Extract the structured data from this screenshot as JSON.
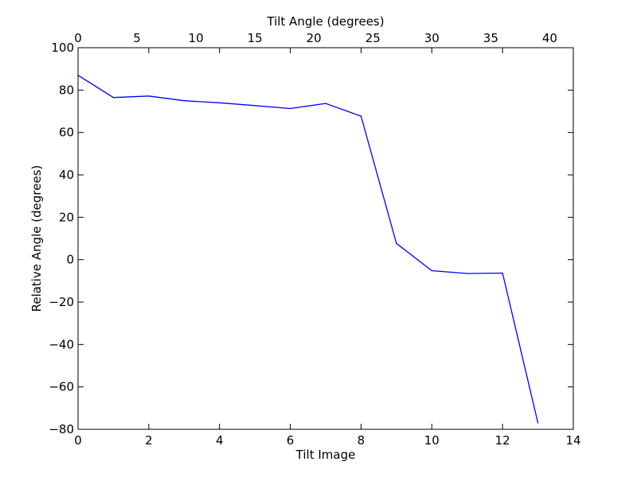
{
  "chart_data": {
    "type": "line",
    "title": "",
    "xlabel": "Tilt Image",
    "ylabel": "Relative Angle (degrees)",
    "x2label": "Tilt Angle (degrees)",
    "xlim": [
      0,
      14
    ],
    "ylim": [
      -80,
      100
    ],
    "x2lim": [
      0,
      42
    ],
    "x_ticks": [
      "0",
      "2",
      "4",
      "6",
      "8",
      "10",
      "12",
      "14"
    ],
    "y_ticks": [
      "100",
      "80",
      "60",
      "40",
      "20",
      "0",
      "−20",
      "−40",
      "−60",
      "−80"
    ],
    "x2_ticks": [
      "0",
      "5",
      "10",
      "15",
      "20",
      "25",
      "30",
      "35",
      "40"
    ],
    "grid": false,
    "legend": "none",
    "line_color": "#0000ff",
    "series": [
      {
        "x": [
          0,
          1,
          2,
          3,
          4,
          5,
          6,
          7,
          8,
          9,
          10,
          11,
          12,
          13
        ],
        "values": [
          87,
          76.5,
          77.2,
          75,
          74,
          72.7,
          71.3,
          73.7,
          67.7,
          7.7,
          -5.2,
          -6.5,
          -6.3,
          -77
        ]
      }
    ]
  }
}
